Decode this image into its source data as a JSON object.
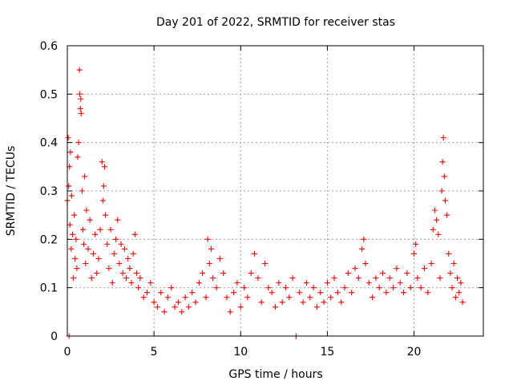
{
  "chart_data": {
    "type": "scatter",
    "title": "Day 201 of 2022, SRMTID for receiver stas",
    "xlabel": "GPS time / hours",
    "ylabel": "SRMTID / TECUs",
    "xlim": [
      0,
      24
    ],
    "ylim": [
      0,
      0.6
    ],
    "grid": true,
    "marker": "+",
    "color": "#ff0000",
    "x_ticks": [
      0,
      5,
      10,
      15,
      20
    ],
    "x_tick_labels": [
      "0",
      "5",
      "10",
      "15",
      "20"
    ],
    "y_ticks": [
      0,
      0.1,
      0.2,
      0.3,
      0.4,
      0.5,
      0.6
    ],
    "y_tick_labels": [
      "0",
      "0.1",
      "0.2",
      "0.3",
      "0.4",
      "0.5",
      "0.6"
    ],
    "series": [
      {
        "name": "SRMTID",
        "points": [
          [
            0.0,
            0.28
          ],
          [
            0.05,
            0.41
          ],
          [
            0.08,
            0.31
          ],
          [
            0.1,
            0.0
          ],
          [
            0.12,
            0.35
          ],
          [
            0.15,
            0.23
          ],
          [
            0.18,
            0.38
          ],
          [
            0.22,
            0.18
          ],
          [
            0.25,
            0.29
          ],
          [
            0.3,
            0.21
          ],
          [
            0.35,
            0.12
          ],
          [
            0.4,
            0.25
          ],
          [
            0.45,
            0.16
          ],
          [
            0.5,
            0.2
          ],
          [
            0.55,
            0.14
          ],
          [
            0.6,
            0.37
          ],
          [
            0.65,
            0.4
          ],
          [
            0.7,
            0.55
          ],
          [
            0.72,
            0.5
          ],
          [
            0.75,
            0.47
          ],
          [
            0.78,
            0.49
          ],
          [
            0.8,
            0.46
          ],
          [
            0.85,
            0.3
          ],
          [
            0.9,
            0.22
          ],
          [
            0.95,
            0.19
          ],
          [
            1.0,
            0.33
          ],
          [
            1.05,
            0.15
          ],
          [
            1.1,
            0.26
          ],
          [
            1.2,
            0.18
          ],
          [
            1.3,
            0.24
          ],
          [
            1.4,
            0.12
          ],
          [
            1.5,
            0.17
          ],
          [
            1.6,
            0.21
          ],
          [
            1.7,
            0.13
          ],
          [
            1.8,
            0.16
          ],
          [
            1.9,
            0.22
          ],
          [
            2.0,
            0.36
          ],
          [
            2.05,
            0.28
          ],
          [
            2.1,
            0.31
          ],
          [
            2.15,
            0.35
          ],
          [
            2.2,
            0.25
          ],
          [
            2.3,
            0.19
          ],
          [
            2.4,
            0.14
          ],
          [
            2.5,
            0.22
          ],
          [
            2.6,
            0.11
          ],
          [
            2.7,
            0.17
          ],
          [
            2.8,
            0.2
          ],
          [
            2.9,
            0.24
          ],
          [
            3.0,
            0.15
          ],
          [
            3.1,
            0.19
          ],
          [
            3.2,
            0.13
          ],
          [
            3.3,
            0.18
          ],
          [
            3.4,
            0.12
          ],
          [
            3.5,
            0.16
          ],
          [
            3.6,
            0.14
          ],
          [
            3.7,
            0.11
          ],
          [
            3.8,
            0.17
          ],
          [
            3.9,
            0.21
          ],
          [
            4.0,
            0.13
          ],
          [
            4.1,
            0.1
          ],
          [
            4.2,
            0.12
          ],
          [
            4.4,
            0.08
          ],
          [
            4.6,
            0.09
          ],
          [
            4.8,
            0.11
          ],
          [
            5.0,
            0.07
          ],
          [
            5.2,
            0.06
          ],
          [
            5.4,
            0.09
          ],
          [
            5.6,
            0.05
          ],
          [
            5.8,
            0.08
          ],
          [
            6.0,
            0.1
          ],
          [
            6.2,
            0.06
          ],
          [
            6.4,
            0.07
          ],
          [
            6.6,
            0.05
          ],
          [
            6.8,
            0.08
          ],
          [
            7.0,
            0.06
          ],
          [
            7.2,
            0.09
          ],
          [
            7.4,
            0.07
          ],
          [
            7.6,
            0.11
          ],
          [
            7.8,
            0.13
          ],
          [
            8.0,
            0.08
          ],
          [
            8.1,
            0.2
          ],
          [
            8.2,
            0.15
          ],
          [
            8.3,
            0.18
          ],
          [
            8.4,
            0.12
          ],
          [
            8.6,
            0.1
          ],
          [
            8.8,
            0.16
          ],
          [
            9.0,
            0.13
          ],
          [
            9.2,
            0.08
          ],
          [
            9.4,
            0.05
          ],
          [
            9.6,
            0.09
          ],
          [
            9.8,
            0.11
          ],
          [
            10.0,
            0.06
          ],
          [
            10.2,
            0.1
          ],
          [
            10.4,
            0.08
          ],
          [
            10.6,
            0.13
          ],
          [
            10.8,
            0.17
          ],
          [
            11.0,
            0.12
          ],
          [
            11.2,
            0.07
          ],
          [
            11.4,
            0.15
          ],
          [
            11.6,
            0.1
          ],
          [
            11.8,
            0.09
          ],
          [
            12.0,
            0.06
          ],
          [
            12.2,
            0.11
          ],
          [
            12.4,
            0.07
          ],
          [
            12.6,
            0.1
          ],
          [
            12.8,
            0.08
          ],
          [
            13.0,
            0.12
          ],
          [
            13.2,
            0.0
          ],
          [
            13.4,
            0.09
          ],
          [
            13.6,
            0.07
          ],
          [
            13.8,
            0.11
          ],
          [
            14.0,
            0.08
          ],
          [
            14.2,
            0.1
          ],
          [
            14.4,
            0.06
          ],
          [
            14.6,
            0.09
          ],
          [
            14.8,
            0.07
          ],
          [
            15.0,
            0.11
          ],
          [
            15.2,
            0.08
          ],
          [
            15.4,
            0.12
          ],
          [
            15.6,
            0.09
          ],
          [
            15.8,
            0.07
          ],
          [
            16.0,
            0.1
          ],
          [
            16.2,
            0.13
          ],
          [
            16.4,
            0.09
          ],
          [
            16.6,
            0.14
          ],
          [
            16.8,
            0.12
          ],
          [
            17.0,
            0.18
          ],
          [
            17.1,
            0.2
          ],
          [
            17.2,
            0.15
          ],
          [
            17.4,
            0.11
          ],
          [
            17.6,
            0.08
          ],
          [
            17.8,
            0.12
          ],
          [
            18.0,
            0.1
          ],
          [
            18.2,
            0.13
          ],
          [
            18.4,
            0.09
          ],
          [
            18.6,
            0.12
          ],
          [
            18.8,
            0.1
          ],
          [
            19.0,
            0.14
          ],
          [
            19.2,
            0.11
          ],
          [
            19.4,
            0.09
          ],
          [
            19.6,
            0.13
          ],
          [
            19.8,
            0.1
          ],
          [
            20.0,
            0.17
          ],
          [
            20.1,
            0.19
          ],
          [
            20.2,
            0.12
          ],
          [
            20.4,
            0.1
          ],
          [
            20.6,
            0.14
          ],
          [
            20.8,
            0.09
          ],
          [
            21.0,
            0.15
          ],
          [
            21.1,
            0.22
          ],
          [
            21.2,
            0.26
          ],
          [
            21.3,
            0.24
          ],
          [
            21.4,
            0.21
          ],
          [
            21.5,
            0.12
          ],
          [
            21.6,
            0.3
          ],
          [
            21.65,
            0.36
          ],
          [
            21.7,
            0.41
          ],
          [
            21.75,
            0.33
          ],
          [
            21.8,
            0.28
          ],
          [
            21.9,
            0.25
          ],
          [
            22.0,
            0.17
          ],
          [
            22.1,
            0.13
          ],
          [
            22.2,
            0.1
          ],
          [
            22.3,
            0.15
          ],
          [
            22.4,
            0.08
          ],
          [
            22.5,
            0.12
          ],
          [
            22.6,
            0.09
          ],
          [
            22.7,
            0.11
          ],
          [
            22.8,
            0.07
          ]
        ]
      }
    ]
  }
}
